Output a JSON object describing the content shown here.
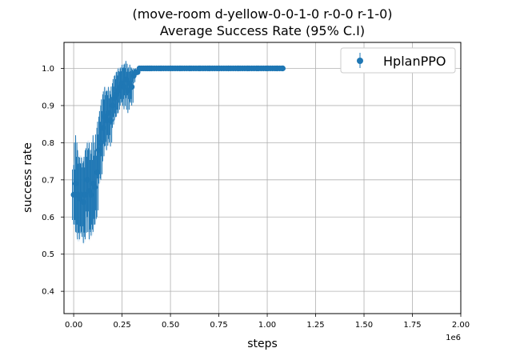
{
  "chart_data": {
    "type": "scatter",
    "title_line1": "(move-room d-yellow-0-0-1-0 r-0-0 r-1-0)",
    "title_line2": "Average Success Rate (95% C.I)",
    "xlabel": "steps",
    "ylabel": "success rate",
    "x_multiplier": "1e6",
    "xlim": [
      -0.05,
      2.0
    ],
    "ylim": [
      0.34,
      1.07
    ],
    "x_ticks": [
      0.0,
      0.25,
      0.5,
      0.75,
      1.0,
      1.25,
      1.5,
      1.75,
      2.0
    ],
    "x_tick_labels": [
      "0.00",
      "0.25",
      "0.50",
      "0.75",
      "1.00",
      "1.25",
      "1.50",
      "1.75",
      "2.00"
    ],
    "y_ticks": [
      0.4,
      0.5,
      0.6,
      0.7,
      0.8,
      0.9,
      1.0
    ],
    "y_tick_labels": [
      "0.4",
      "0.5",
      "0.6",
      "0.7",
      "0.8",
      "0.9",
      "1.0"
    ],
    "grid": true,
    "legend_position": "top-right",
    "colors": {
      "series": "#1f77b4",
      "band": "#d6e6f3"
    },
    "series": [
      {
        "name": "HplanPPO",
        "x": [
          0.0,
          0.01,
          0.02,
          0.03,
          0.04,
          0.05,
          0.06,
          0.07,
          0.08,
          0.09,
          0.1,
          0.11,
          0.12,
          0.13,
          0.14,
          0.15,
          0.16,
          0.17,
          0.18,
          0.19,
          0.2,
          0.21,
          0.22,
          0.23,
          0.24,
          0.25,
          0.26,
          0.27,
          0.28,
          0.29,
          0.3,
          0.31,
          0.32,
          0.33,
          0.34,
          0.35,
          0.36,
          0.37,
          0.38,
          0.39,
          0.4,
          0.45,
          0.5,
          0.55,
          0.6,
          0.65,
          0.7,
          0.75,
          0.8,
          0.85,
          0.9,
          0.95,
          1.0,
          1.05,
          1.08
        ],
        "y": [
          0.66,
          0.69,
          0.66,
          0.65,
          0.66,
          0.64,
          0.66,
          0.7,
          0.67,
          0.66,
          0.69,
          0.68,
          0.72,
          0.78,
          0.8,
          0.84,
          0.87,
          0.86,
          0.88,
          0.86,
          0.9,
          0.92,
          0.93,
          0.94,
          0.95,
          0.96,
          0.95,
          0.97,
          0.94,
          0.96,
          0.95,
          0.98,
          0.99,
          0.99,
          1.0,
          1.0,
          1.0,
          1.0,
          1.0,
          1.0,
          1.0,
          1.0,
          1.0,
          1.0,
          1.0,
          1.0,
          1.0,
          1.0,
          1.0,
          1.0,
          1.0,
          1.0,
          1.0,
          1.0,
          1.0
        ],
        "err": [
          0.08,
          0.13,
          0.12,
          0.11,
          0.1,
          0.11,
          0.12,
          0.1,
          0.13,
          0.11,
          0.13,
          0.1,
          0.12,
          0.09,
          0.1,
          0.09,
          0.08,
          0.08,
          0.07,
          0.07,
          0.06,
          0.06,
          0.06,
          0.06,
          0.05,
          0.05,
          0.06,
          0.05,
          0.06,
          0.05,
          0.05,
          0.02,
          0.01,
          0.005,
          0.0,
          0.0,
          0.0,
          0.0,
          0.0,
          0.0,
          0.0,
          0.0,
          0.0,
          0.0,
          0.0,
          0.0,
          0.0,
          0.0,
          0.0,
          0.0,
          0.0,
          0.0,
          0.0,
          0.0,
          0.0
        ]
      }
    ]
  }
}
